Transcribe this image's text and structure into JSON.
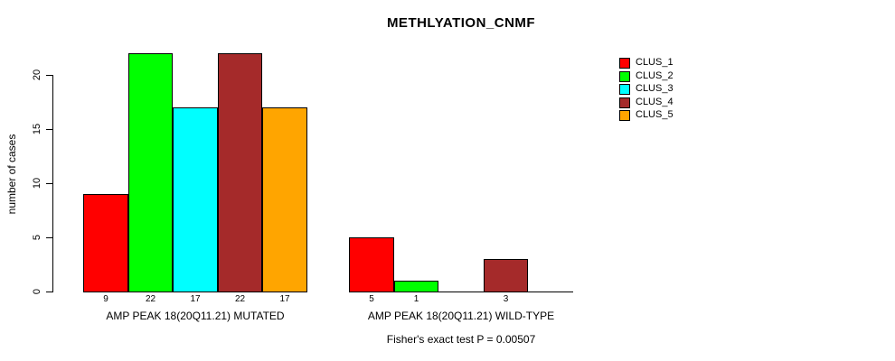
{
  "page": {
    "background": "#FFFFFF",
    "text_color": "#000000"
  },
  "chart_data": {
    "type": "bar",
    "title": "METHLYATION_CNMF",
    "xlabel": "",
    "ylabel": "number of cases",
    "ylim": [
      0,
      22
    ],
    "yticks": [
      0,
      5,
      10,
      15,
      20
    ],
    "grid": false,
    "legend_position": "right",
    "categories": [
      "CLUS_1",
      "CLUS_2",
      "CLUS_3",
      "CLUS_4",
      "CLUS_5"
    ],
    "legend": [
      {
        "label": "CLUS_1",
        "color": "#FF0000"
      },
      {
        "label": "CLUS_2",
        "color": "#00FF00"
      },
      {
        "label": "CLUS_3",
        "color": "#00FFFF"
      },
      {
        "label": "CLUS_4",
        "color": "#A52A2A"
      },
      {
        "label": "CLUS_5",
        "color": "#FFA500"
      }
    ],
    "groups": [
      {
        "label": "AMP PEAK 18(20Q11.21) MUTATED",
        "values": [
          9,
          22,
          17,
          22,
          17
        ]
      },
      {
        "label": "AMP PEAK 18(20Q11.21) WILD-TYPE",
        "values": [
          5,
          1,
          0,
          3,
          0
        ]
      }
    ],
    "bar_border_color": "#000000",
    "annotation": "Fisher's exact test P = 0.00507"
  }
}
